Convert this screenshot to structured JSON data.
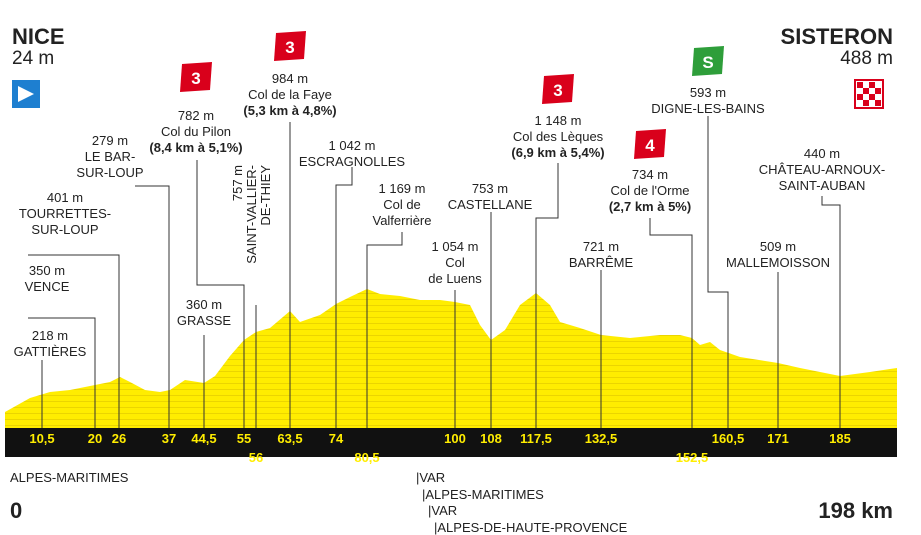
{
  "start": {
    "name": "NICE",
    "altitude": "24 m",
    "km": "0"
  },
  "finish": {
    "name": "SISTERON",
    "altitude": "488 m",
    "km": "198 km"
  },
  "points": [
    {
      "lines": [
        "218 m",
        "GATTIÈRES"
      ]
    },
    {
      "lines": [
        "350 m",
        "VENCE"
      ]
    },
    {
      "lines": [
        "401 m",
        "TOURRETTES-",
        "SUR-LOUP"
      ]
    },
    {
      "lines": [
        "279 m",
        "LE BAR-",
        "SUR-LOUP"
      ]
    },
    {
      "lines": [
        "782 m",
        "Col du Pilon",
        "(8,4 km à 5,1%)"
      ],
      "badge": "3"
    },
    {
      "lines": [
        "360 m",
        "GRASSE"
      ]
    },
    {
      "lines": [
        "757 m",
        "SAINT-VALLIER-",
        "DE-THIEY"
      ]
    },
    {
      "lines": [
        "984 m",
        "Col de la Faye",
        "(5,3 km à 4,8%)"
      ],
      "badge": "3"
    },
    {
      "lines": [
        "1 042 m",
        "ESCRAGNOLLES"
      ]
    },
    {
      "lines": [
        "1 169 m",
        "Col de",
        "Valferrière"
      ]
    },
    {
      "lines": [
        "1 054 m",
        "Col",
        "de Luens"
      ]
    },
    {
      "lines": [
        "753 m",
        "CASTELLANE"
      ]
    },
    {
      "lines": [
        "1 148 m",
        "Col des Lèques",
        "(6,9 km à 5,4%)"
      ],
      "badge": "3"
    },
    {
      "lines": [
        "721 m",
        "BARRÊME"
      ]
    },
    {
      "lines": [
        "734 m",
        "Col de l'Orme",
        "(2,7 km à 5%)"
      ],
      "badge": "4"
    },
    {
      "lines": [
        "593 m",
        "DIGNE-LES-BAINS"
      ],
      "badge": "S"
    },
    {
      "lines": [
        "509 m",
        "MALLEMOISSON"
      ]
    },
    {
      "lines": [
        "440 m",
        "CHÂTEAU-ARNOUX-",
        "SAINT-AUBAN"
      ]
    }
  ],
  "km_markers": [
    "10,5",
    "20",
    "26",
    "37",
    "44,5",
    "55",
    "56",
    "63,5",
    "74",
    "80,5",
    "100",
    "108",
    "117,5",
    "132,5",
    "152,5",
    "160,5",
    "171",
    "185"
  ],
  "regions": [
    "ALPES-MARITIMES",
    "|VAR",
    "|ALPES-MARITIMES",
    "|VAR",
    "|ALPES-DE-HAUTE-PROVENCE"
  ]
}
